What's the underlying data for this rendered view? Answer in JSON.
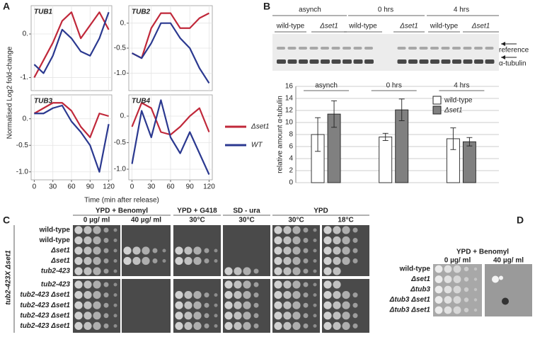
{
  "panel_labels": [
    "A",
    "B",
    "C",
    "D"
  ],
  "panel_a": {
    "ylabel": "Normalised Log2 fold-change",
    "xlabel": "Time (min after release)"
  },
  "chart_data": [
    {
      "type": "line",
      "title": "TUB1",
      "x": [
        0,
        15,
        30,
        45,
        60,
        75,
        90,
        105,
        120
      ],
      "xticks": [
        0,
        30,
        60,
        90,
        120
      ],
      "xlim": [
        -5,
        125
      ],
      "ylim": [
        -1.3,
        0.65
      ],
      "yticks": [
        {
          "value": 0,
          "label": "0."
        },
        {
          "value": -1,
          "label": "-1."
        }
      ],
      "series": [
        {
          "name": "Δset1",
          "color": "#c0283a",
          "values": [
            -1.0,
            -0.6,
            -0.2,
            0.3,
            0.5,
            -0.1,
            0.2,
            0.5,
            0.1
          ]
        },
        {
          "name": "WT",
          "color": "#2b3990",
          "values": [
            -0.7,
            -0.9,
            -0.5,
            0.1,
            -0.1,
            -0.4,
            -0.5,
            -0.1,
            0.5
          ]
        }
      ]
    },
    {
      "type": "line",
      "title": "TUB2",
      "x": [
        0,
        15,
        30,
        45,
        60,
        75,
        90,
        105,
        120
      ],
      "xticks": [
        0,
        30,
        60,
        90,
        120
      ],
      "xlim": [
        -5,
        125
      ],
      "ylim": [
        -1.35,
        0.35
      ],
      "yticks": [
        {
          "value": 0,
          "label": "0."
        },
        -0.5,
        {
          "value": -1,
          "label": "-1.0"
        }
      ],
      "series": [
        {
          "name": "Δset1",
          "color": "#c0283a",
          "values": [
            -0.6,
            -0.7,
            -0.1,
            0.2,
            0.2,
            -0.1,
            -0.1,
            0.1,
            0.2
          ]
        },
        {
          "name": "WT",
          "color": "#2b3990",
          "values": [
            -0.6,
            -0.7,
            -0.4,
            0.0,
            0.0,
            -0.3,
            -0.5,
            -0.9,
            -1.2
          ]
        }
      ]
    },
    {
      "type": "line",
      "title": "TUB3",
      "x": [
        0,
        15,
        30,
        45,
        60,
        75,
        90,
        105,
        120
      ],
      "xticks": [
        0,
        30,
        60,
        90,
        120
      ],
      "xlim": [
        -5,
        125
      ],
      "ylim": [
        -1.15,
        0.45
      ],
      "yticks": [
        {
          "value": 0,
          "label": "0."
        },
        -0.5,
        {
          "value": -1,
          "label": "-1.0"
        }
      ],
      "series": [
        {
          "name": "Δset1",
          "color": "#c0283a",
          "values": [
            0.1,
            0.2,
            0.3,
            0.3,
            0.15,
            -0.15,
            -0.35,
            0.1,
            0.05
          ]
        },
        {
          "name": "WT",
          "color": "#2b3990",
          "values": [
            0.1,
            0.1,
            0.2,
            0.25,
            -0.05,
            -0.25,
            -0.5,
            -1.0,
            -0.1
          ]
        }
      ]
    },
    {
      "type": "line",
      "title": "TUB4",
      "x": [
        0,
        15,
        30,
        45,
        60,
        75,
        90,
        105,
        120
      ],
      "xticks": [
        0,
        30,
        60,
        90,
        120
      ],
      "xlim": [
        -5,
        125
      ],
      "ylim": [
        -1.2,
        0.4
      ],
      "yticks": [
        {
          "value": 0,
          "label": "0."
        },
        -0.5,
        {
          "value": -1,
          "label": "-1.0"
        }
      ],
      "series": [
        {
          "name": "Δset1",
          "color": "#c0283a",
          "values": [
            -0.2,
            0.25,
            0.15,
            -0.3,
            -0.35,
            -0.2,
            0.0,
            0.15,
            -0.3
          ]
        },
        {
          "name": "WT",
          "color": "#2b3990",
          "values": [
            -0.9,
            0.1,
            -0.4,
            0.3,
            -0.4,
            -0.7,
            -0.3,
            -0.7,
            -1.1
          ]
        }
      ]
    },
    {
      "type": "bar",
      "ylabel": "relative amount α-tubulin",
      "categories": [
        "asynch",
        "0 hrs",
        "4 hrs"
      ],
      "ylim": [
        0,
        16
      ],
      "yticks": [
        0,
        2,
        4,
        6,
        8,
        10,
        12,
        14,
        16
      ],
      "grid": true,
      "series": [
        {
          "name": "wild-type",
          "color": "#ffffff",
          "values": [
            8,
            7.6,
            7.3
          ],
          "errors": [
            2.8,
            0.6,
            1.8
          ]
        },
        {
          "name": "Δset1",
          "color": "#808080",
          "values": [
            11.4,
            12.1,
            6.8
          ],
          "errors": [
            2.2,
            1.8,
            0.7
          ]
        }
      ]
    }
  ],
  "blot": {
    "groups": [
      "asynch",
      "0 hrs",
      "4 hrs"
    ],
    "lanes": [
      "wild-type",
      "Δset1",
      "wild-type",
      "Δset1",
      "wild-type",
      "Δset1"
    ],
    "bands": [
      "reference",
      "α-tubulin"
    ]
  },
  "panel_c": {
    "side_label": "tub2-423X Δset1",
    "conditions": [
      {
        "name": "YPD + Benomyl",
        "columns": [
          "0 µg/ ml",
          "40 µg/ ml"
        ]
      },
      {
        "name": "YPD + G418",
        "columns": [
          "30°C"
        ]
      },
      {
        "name": "SD - ura",
        "columns": [
          "30°C"
        ]
      },
      {
        "name": "YPD",
        "columns": [
          "30°C",
          "18°C"
        ]
      }
    ],
    "strains": [
      "wild-type",
      "wild-type",
      "Δset1",
      "Δset1",
      "tub2-423",
      "tub2-423",
      "tub2-423 Δset1",
      "tub2-423 Δset1",
      "tub2-423 Δset1",
      "tub2-423 Δset1"
    ]
  },
  "panel_d": {
    "condition": "YPD + Benomyl",
    "columns": [
      "0 µg/ ml",
      "40 µg/ ml"
    ],
    "strains": [
      "wild-type",
      "Δset1",
      "Δtub3",
      "Δtub3 Δset1",
      "Δtub3 Δset1"
    ]
  }
}
